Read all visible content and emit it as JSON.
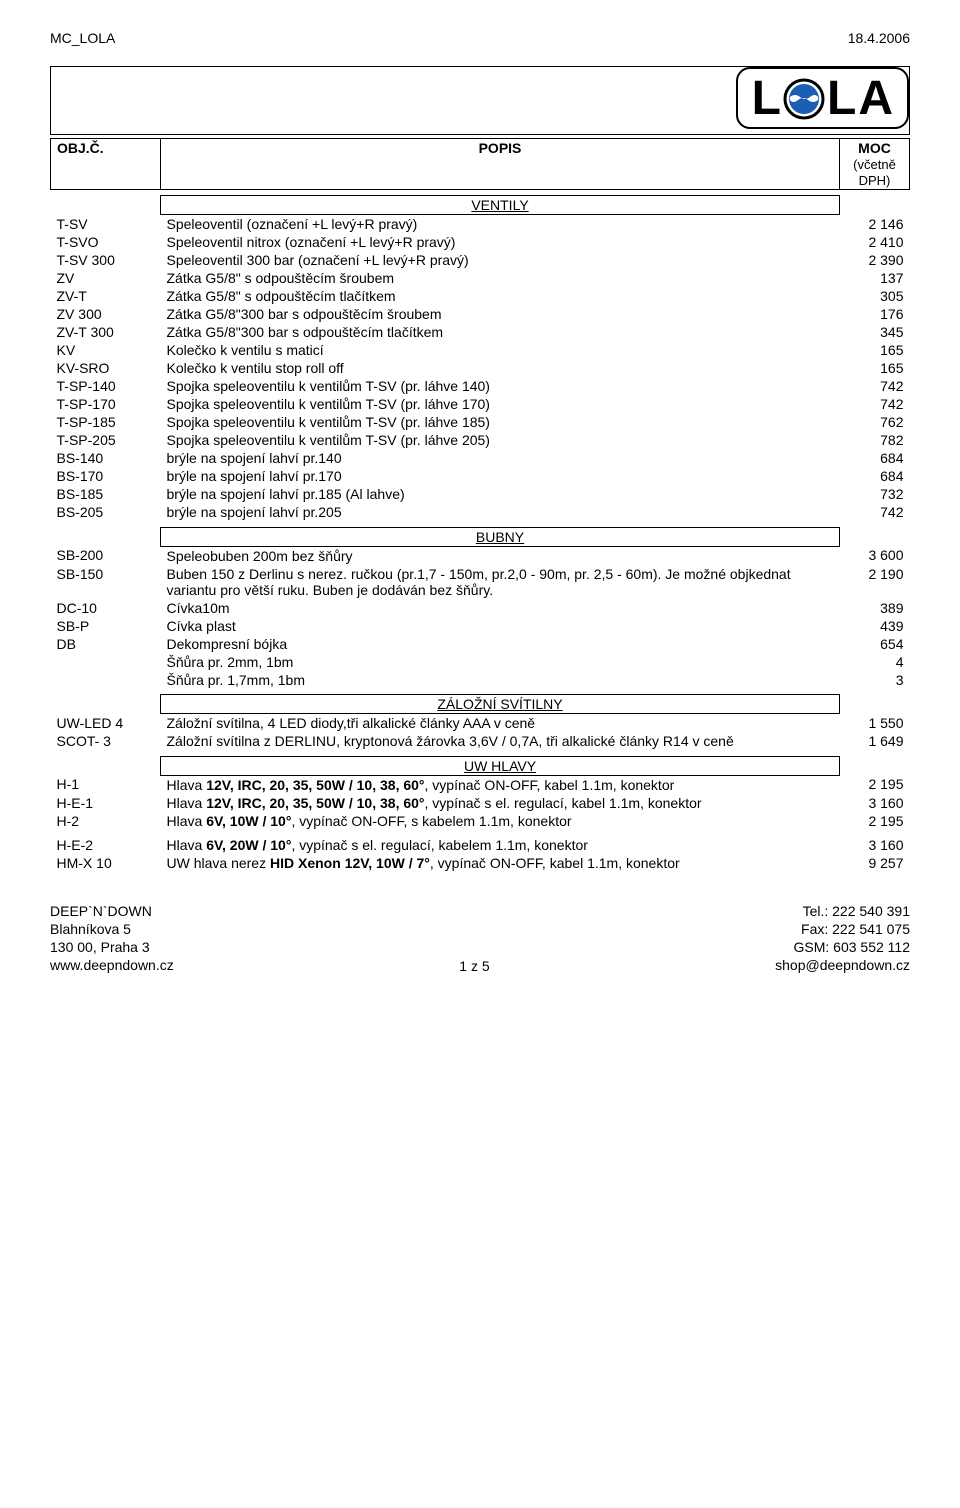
{
  "header": {
    "left": "MC_LOLA",
    "right": "18.4.2006"
  },
  "logo": {
    "l1": "L",
    "l2": "L",
    "a": "A",
    "wave_color": "#1a5fb4",
    "dark": "#000000"
  },
  "columns": {
    "obj": "OBJ.Č.",
    "popis": "POPIS",
    "moc": "MOC",
    "dph": "(včetně DPH)"
  },
  "sections": {
    "ventily": {
      "title": "VENTILY",
      "rows": [
        {
          "code": "T-SV",
          "desc": "Speleoventil (označení +L levý+R pravý)",
          "price": "2 146"
        },
        {
          "code": "T-SVO",
          "desc": "Speleoventil nitrox (označení +L levý+R pravý)",
          "price": "2 410"
        },
        {
          "code": "T-SV 300",
          "desc": "Speleoventil 300 bar (označení +L levý+R pravý)",
          "price": "2 390"
        },
        {
          "code": "ZV",
          "desc": "Zátka G5/8\" s odpouštěcím šroubem",
          "price": "137"
        },
        {
          "code": "ZV-T",
          "desc": "Zátka G5/8\" s odpouštěcím tlačítkem",
          "price": "305"
        },
        {
          "code": "ZV 300",
          "desc": "Zátka G5/8\"300 bar s odpouštěcím šroubem",
          "price": "176"
        },
        {
          "code": "ZV-T 300",
          "desc": "Zátka G5/8\"300 bar s odpouštěcím tlačítkem",
          "price": "345"
        },
        {
          "code": "KV",
          "desc": "Kolečko k ventilu s maticí",
          "price": "165"
        },
        {
          "code": "KV-SRO",
          "desc": "Kolečko k ventilu stop roll off",
          "price": "165"
        },
        {
          "code": "T-SP-140",
          "desc": "Spojka speleoventilu k ventilům T-SV (pr. láhve 140)",
          "price": "742"
        },
        {
          "code": "T-SP-170",
          "desc": "Spojka speleoventilu k ventilům T-SV (pr. láhve 170)",
          "price": "742"
        },
        {
          "code": "T-SP-185",
          "desc": "Spojka speleoventilu k ventilům T-SV (pr. láhve 185)",
          "price": "762"
        },
        {
          "code": "T-SP-205",
          "desc": "Spojka speleoventilu k ventilům T-SV (pr. láhve 205)",
          "price": "782"
        },
        {
          "code": "BS-140",
          "desc": "brýle na spojení lahví pr.140",
          "price": "684"
        },
        {
          "code": "BS-170",
          "desc": "brýle na spojení lahví pr.170",
          "price": "684"
        },
        {
          "code": "BS-185",
          "desc": "brýle na spojení lahví pr.185 (Al lahve)",
          "price": "732"
        },
        {
          "code": "BS-205",
          "desc": "brýle na spojení lahví pr.205",
          "price": "742"
        }
      ]
    },
    "bubny": {
      "title": "BUBNY",
      "rows": [
        {
          "code": "SB-200",
          "desc": "Speleobuben 200m bez šňůry",
          "price": "3 600"
        },
        {
          "code": "SB-150",
          "desc": "Buben 150 z Derlinu s nerez. ručkou (pr.1,7 - 150m, pr.2,0 - 90m, pr. 2,5 - 60m). Je možné objkednat variantu pro větší ruku. Buben je dodáván bez šňůry.",
          "price": "2 190"
        },
        {
          "code": "DC-10",
          "desc": "Cívka10m",
          "price": "389"
        },
        {
          "code": "SB-P",
          "desc": "Cívka plast",
          "price": "439"
        },
        {
          "code": "DB",
          "desc": "Dekompresní bójka",
          "price": "654"
        },
        {
          "code": "",
          "desc": "Šňůra pr. 2mm, 1bm",
          "price": "4"
        },
        {
          "code": "",
          "desc": "Šňůra pr. 1,7mm, 1bm",
          "price": "3"
        }
      ]
    },
    "zalozni": {
      "title": "ZÁLOŽNÍ SVÍTILNY",
      "rows": [
        {
          "code": "UW-LED 4",
          "desc": "Záložní svítilna, 4 LED diody,tři alkalické články AAA v ceně",
          "price": "1 550"
        },
        {
          "code": "SCOT- 3",
          "desc": "Záložní svítilna z DERLINU, kryptonová žárovka 3,6V / 0,7A, tři alkalické články R14 v ceně",
          "price": "1 649"
        }
      ]
    },
    "uwhlavy": {
      "title": "UW HLAVY",
      "rows": [
        {
          "code": "H-1",
          "desc_pre": "Hlava ",
          "desc_bold": "12V, IRC, 20, 35, 50W / 10, 38, 60°",
          "desc_post": ", vypínač ON-OFF, kabel 1.1m, konektor",
          "price": "2 195"
        },
        {
          "code": "H-E-1",
          "desc_pre": "Hlava ",
          "desc_bold": "12V, IRC, 20, 35, 50W / 10, 38, 60°",
          "desc_post": ", vypínač s el. regulací, kabel 1.1m, konektor",
          "price": "3 160"
        },
        {
          "code": "H-2",
          "desc_pre": "Hlava ",
          "desc_bold": "6V, 10W / 10°",
          "desc_post": ", vypínač ON-OFF, s kabelem 1.1m, konektor",
          "price": "2 195"
        },
        {
          "code": "H-E-2",
          "desc_pre": "Hlava ",
          "desc_bold": "6V, 20W / 10°",
          "desc_post": ", vypínač s el. regulací, kabelem 1.1m, konektor",
          "price": "3 160"
        },
        {
          "code": "HM-X 10",
          "desc_pre": "UW hlava nerez ",
          "desc_bold": "HID Xenon 12V, 10W / 7°",
          "desc_post": ", vypínač ON-OFF, kabel 1.1m, konektor",
          "price": "9 257"
        }
      ]
    }
  },
  "footer": {
    "left": [
      "DEEP`N`DOWN",
      "Blahníkova 5",
      "130 00, Praha 3",
      "www.deepndown.cz"
    ],
    "center": "1 z 5",
    "right": [
      "Tel.: 222 540 391",
      "Fax: 222 541 075",
      "GSM: 603 552 112",
      "shop@deepndown.cz"
    ]
  }
}
